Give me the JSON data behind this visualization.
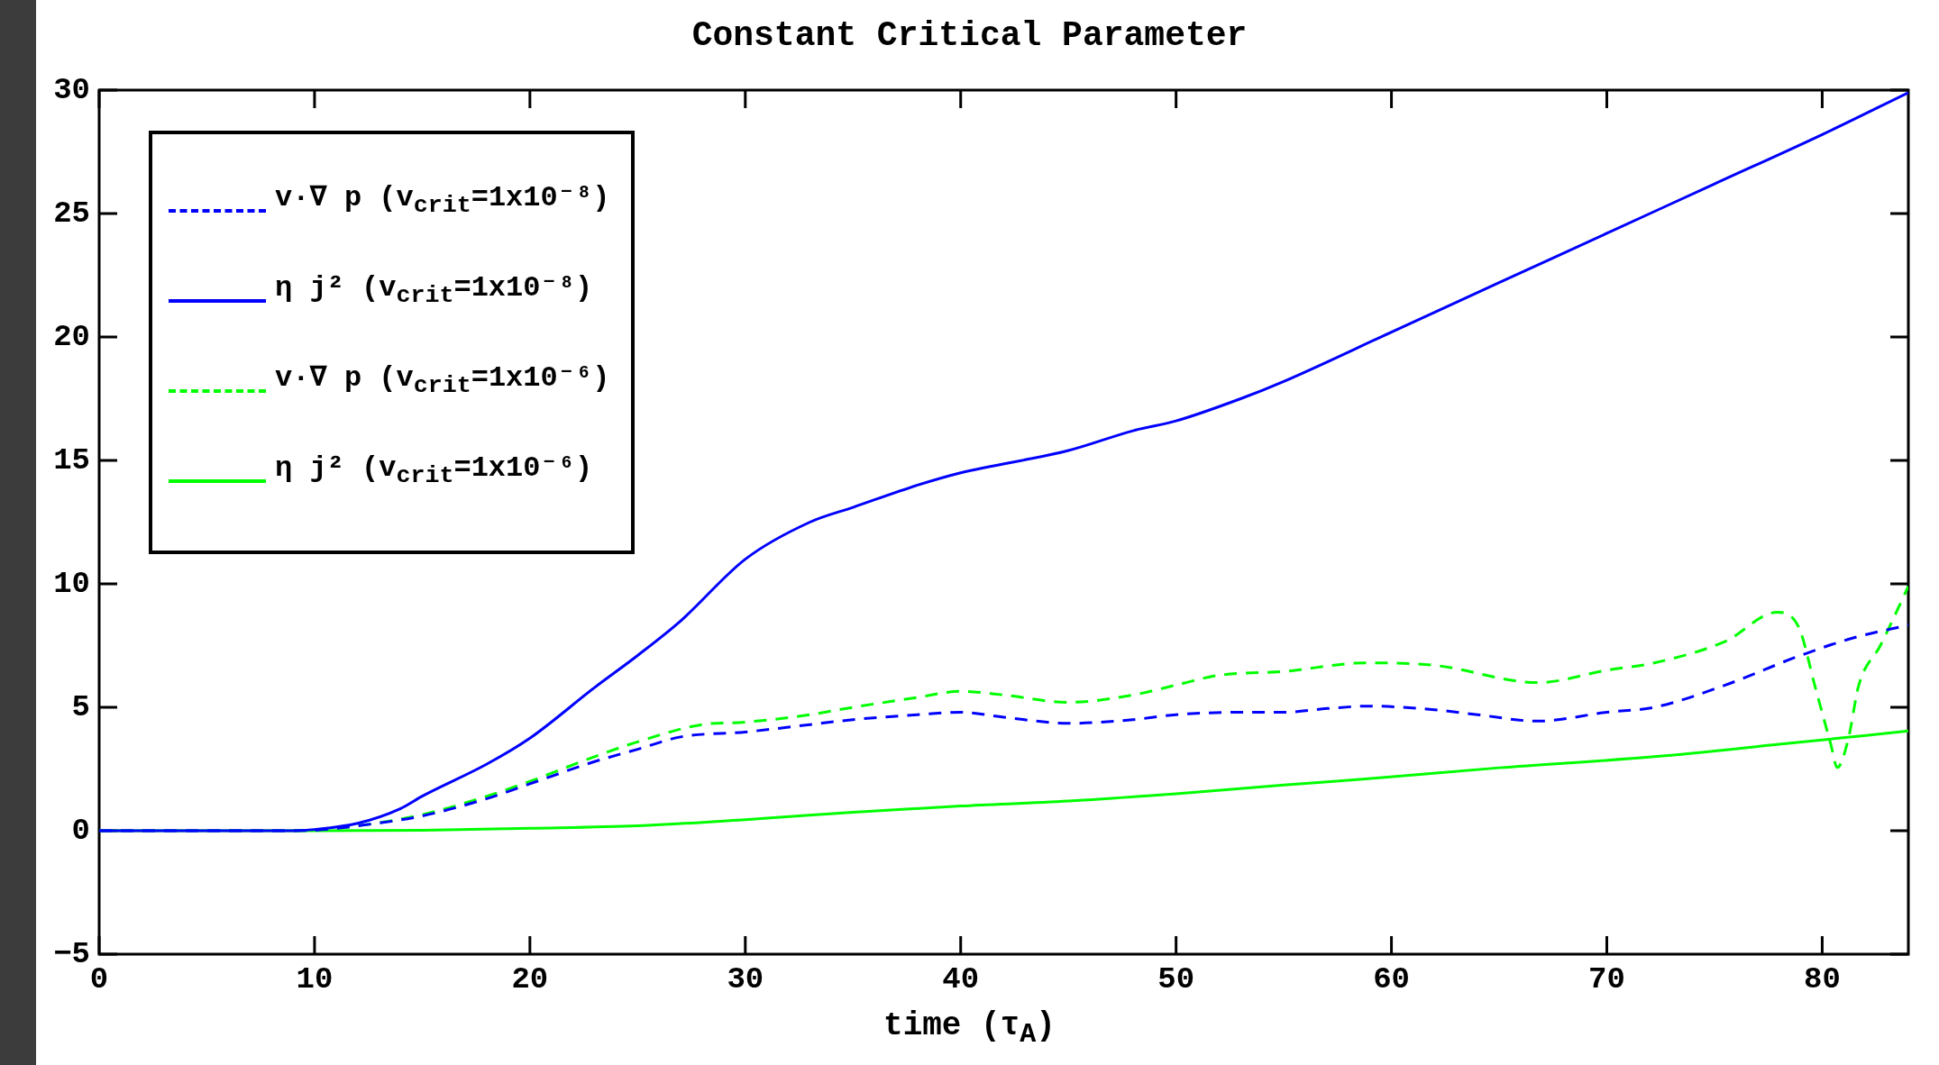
{
  "chart_data": {
    "type": "line",
    "title": "Constant Critical Parameter",
    "xlabel": "time (τ$_{A}$)",
    "xlim": [
      0,
      84
    ],
    "xticks": [
      0,
      10,
      20,
      30,
      40,
      50,
      60,
      70,
      80
    ],
    "ylim": [
      -5,
      30
    ],
    "yticks": [
      -5,
      0,
      5,
      10,
      15,
      20,
      25,
      30
    ],
    "legend": "top left",
    "marker": "none",
    "series": [
      {
        "name": "v·∇ p (v$_{crit}$=1x10⁻⁸)",
        "color": "#0000ff",
        "line_style": "dashed",
        "x": [
          0,
          5,
          9,
          10,
          12,
          15,
          18,
          20,
          23,
          25,
          27,
          30,
          33,
          35,
          38,
          40,
          42,
          45,
          48,
          50,
          53,
          55,
          57,
          59,
          62,
          64,
          66.8,
          70,
          72.2,
          75.5,
          78.9,
          81.4,
          84
        ],
        "values": [
          0,
          0,
          0,
          0.02,
          0.2,
          0.6,
          1.3,
          1.9,
          2.8,
          3.3,
          3.8,
          4.0,
          4.3,
          4.5,
          4.7,
          4.8,
          4.6,
          4.35,
          4.5,
          4.7,
          4.8,
          4.8,
          4.95,
          5.05,
          4.9,
          4.7,
          4.44,
          4.8,
          5.0,
          5.9,
          7.07,
          7.8,
          8.33
        ]
      },
      {
        "name": "η j² (v$_{crit}$=1x10⁻⁸)",
        "color": "#0000ff",
        "line_style": "solid",
        "x": [
          0,
          5,
          9,
          10,
          12,
          14,
          15,
          18,
          20,
          23,
          25,
          27,
          30,
          33,
          35,
          38,
          40,
          45,
          48,
          50,
          53,
          55,
          60,
          65,
          70,
          75,
          80,
          84
        ],
        "values": [
          0,
          0,
          0,
          0.05,
          0.3,
          0.9,
          1.4,
          2.7,
          3.75,
          5.8,
          7.1,
          8.5,
          11.0,
          12.5,
          13.1,
          14.0,
          14.5,
          15.4,
          16.2,
          16.6,
          17.5,
          18.2,
          20.2,
          22.2,
          24.2,
          26.2,
          28.2,
          29.9
        ]
      },
      {
        "name": "v·∇ p (v$_{crit}$=1x10⁻⁶)",
        "color": "#00ff00",
        "line_style": "dashed",
        "x": [
          0,
          5,
          9,
          10,
          12,
          15,
          18,
          20,
          23,
          25,
          28,
          30,
          33,
          35,
          38,
          40,
          42,
          45,
          48,
          50,
          52,
          55,
          58.8,
          62,
          66.8,
          70,
          72.2,
          75.5,
          77.9,
          78.9,
          79.7,
          80.4,
          80.7,
          81.2,
          81.7,
          82.7,
          84
        ],
        "values": [
          0,
          0,
          0,
          0.02,
          0.2,
          0.65,
          1.4,
          2.0,
          3.0,
          3.6,
          4.3,
          4.4,
          4.7,
          5.0,
          5.4,
          5.65,
          5.5,
          5.2,
          5.5,
          5.9,
          6.3,
          6.45,
          6.8,
          6.7,
          6.0,
          6.5,
          6.8,
          7.67,
          8.85,
          8.26,
          5.74,
          3.5,
          2.56,
          3.67,
          5.9,
          7.5,
          9.9
        ]
      },
      {
        "name": "η j² (v$_{crit}$=1x10⁻⁶)",
        "color": "#00ff00",
        "line_style": "solid",
        "x": [
          0,
          10,
          15,
          20,
          25,
          30,
          35,
          40,
          45,
          50,
          55,
          58.8,
          65,
          72.2,
          78,
          84
        ],
        "values": [
          0,
          0,
          0.02,
          0.1,
          0.2,
          0.45,
          0.75,
          1.0,
          1.2,
          1.5,
          1.85,
          2.1,
          2.55,
          3.0,
          3.5,
          4.04
        ]
      }
    ]
  }
}
